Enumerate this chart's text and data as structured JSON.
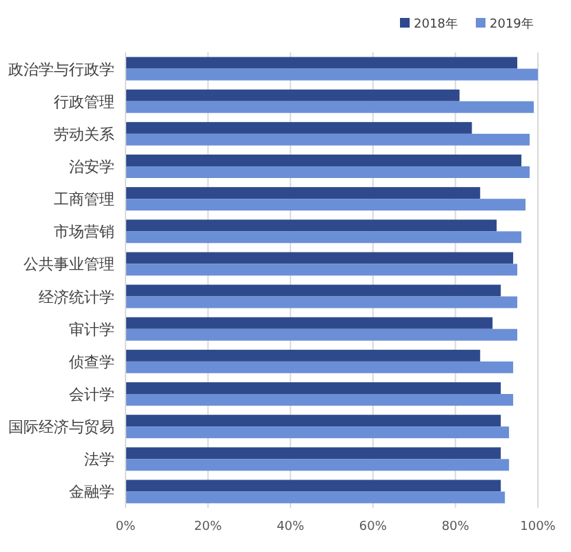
{
  "chart_data": {
    "type": "bar",
    "orientation": "horizontal",
    "categories": [
      "政治学与行政学",
      "行政管理",
      "劳动关系",
      "治安学",
      "工商管理",
      "市场营销",
      "公共事业管理",
      "经济统计学",
      "审计学",
      "侦查学",
      "会计学",
      "国际经济与贸易",
      "法学",
      "金融学"
    ],
    "series": [
      {
        "name": "2018年",
        "color": "#2f4a8c",
        "values": [
          95,
          81,
          84,
          96,
          86,
          90,
          94,
          91,
          89,
          86,
          91,
          91,
          91,
          91
        ]
      },
      {
        "name": "2019年",
        "color": "#6b8fd6",
        "values": [
          100,
          99,
          98,
          98,
          97,
          96,
          95,
          95,
          95,
          94,
          94,
          93,
          93,
          92
        ]
      }
    ],
    "xlim": [
      0,
      100
    ],
    "xticks": [
      {
        "value": 0,
        "label": "0%"
      },
      {
        "value": 20,
        "label": "20%"
      },
      {
        "value": 40,
        "label": "40%"
      },
      {
        "value": 60,
        "label": "60%"
      },
      {
        "value": 80,
        "label": "80%"
      },
      {
        "value": 100,
        "label": "100%"
      }
    ],
    "grid": "x",
    "legend": "top right"
  }
}
